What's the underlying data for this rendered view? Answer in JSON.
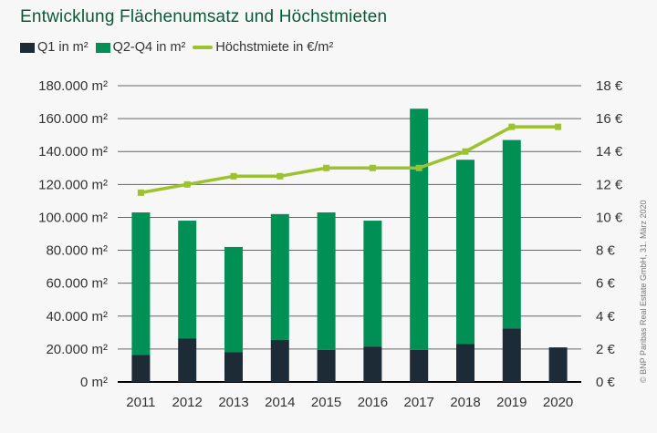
{
  "chart_data": {
    "type": "bar",
    "title": "Entwicklung Flächenumsatz und Höchstmieten",
    "categories": [
      "2011",
      "2012",
      "2013",
      "2014",
      "2015",
      "2016",
      "2017",
      "2018",
      "2019",
      "2020"
    ],
    "series": [
      {
        "name": "Q1 in m²",
        "kind": "bar-stacked",
        "axis": "left",
        "color": "#1c2b36",
        "values": [
          16500,
          26500,
          18000,
          25500,
          19500,
          21500,
          19500,
          23000,
          32500,
          21000
        ]
      },
      {
        "name": "Q2-Q4 in m²",
        "kind": "bar-stacked",
        "axis": "left",
        "color": "#008f55",
        "values": [
          86500,
          71500,
          64000,
          76500,
          83500,
          76500,
          146500,
          112000,
          114500,
          null
        ]
      },
      {
        "name": "Höchstmiete in €/m²",
        "kind": "line",
        "axis": "right",
        "color": "#9cc22e",
        "values": [
          11.5,
          12,
          12.5,
          12.5,
          13,
          13,
          13,
          14,
          15.5,
          15.5
        ]
      }
    ],
    "ylim": [
      0,
      180000
    ],
    "y2lim": [
      0,
      18
    ],
    "yticks": [
      "0 m²",
      "20.000 m²",
      "40.000 m²",
      "60.000 m²",
      "80.000 m²",
      "100.000 m²",
      "120.000 m²",
      "140.000 m²",
      "160.000 m²",
      "180.000 m²"
    ],
    "y2ticks": [
      "0 €",
      "2 €",
      "4 €",
      "6 €",
      "8 €",
      "10 €",
      "12 €",
      "14 €",
      "16 €",
      "18 €"
    ],
    "grid": true,
    "legend_position": "top-left",
    "copyright": "© BNP Paribas Real Estate GmbH, 31. März 2020"
  }
}
